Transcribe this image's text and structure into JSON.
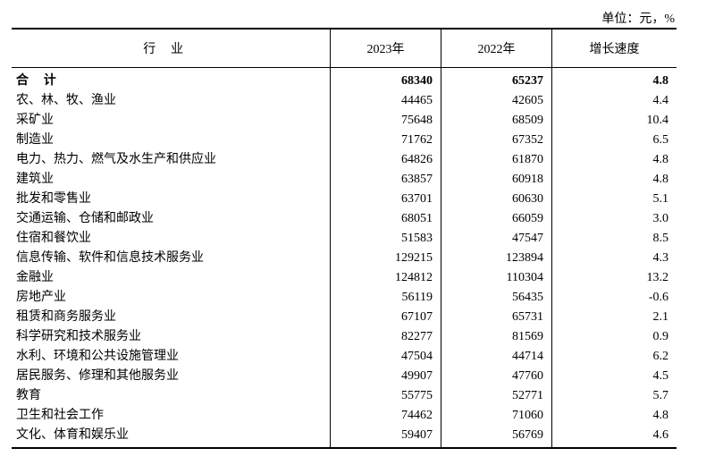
{
  "unit": "单位：元，%",
  "table": {
    "header": [
      "行业",
      "2023年",
      "2022年",
      "增长速度"
    ],
    "rows": [
      [
        "合计",
        "68340",
        "65237",
        "4.8"
      ],
      [
        "农、林、牧、渔业",
        "44465",
        "42605",
        "4.4"
      ],
      [
        "采矿业",
        "75648",
        "68509",
        "10.4"
      ],
      [
        "制造业",
        "71762",
        "67352",
        "6.5"
      ],
      [
        "电力、热力、燃气及水生产和供应业",
        "64826",
        "61870",
        "4.8"
      ],
      [
        "建筑业",
        "63857",
        "60918",
        "4.8"
      ],
      [
        "批发和零售业",
        "63701",
        "60630",
        "5.1"
      ],
      [
        "交通运输、仓储和邮政业",
        "68051",
        "66059",
        "3.0"
      ],
      [
        "住宿和餐饮业",
        "51583",
        "47547",
        "8.5"
      ],
      [
        "信息传输、软件和信息技术服务业",
        "129215",
        "123894",
        "4.3"
      ],
      [
        "金融业",
        "124812",
        "110304",
        "13.2"
      ],
      [
        "房地产业",
        "56119",
        "56435",
        "-0.6"
      ],
      [
        "租赁和商务服务业",
        "67107",
        "65731",
        "2.1"
      ],
      [
        "科学研究和技术服务业",
        "82277",
        "81569",
        "0.9"
      ],
      [
        "水利、环境和公共设施管理业",
        "47504",
        "44714",
        "6.2"
      ],
      [
        "居民服务、修理和其他服务业",
        "49907",
        "47760",
        "4.5"
      ],
      [
        "教育",
        "55775",
        "52771",
        "5.7"
      ],
      [
        "卫生和社会工作",
        "74462",
        "71060",
        "4.8"
      ],
      [
        "文化、体育和娱乐业",
        "59407",
        "56769",
        "4.6"
      ]
    ]
  }
}
